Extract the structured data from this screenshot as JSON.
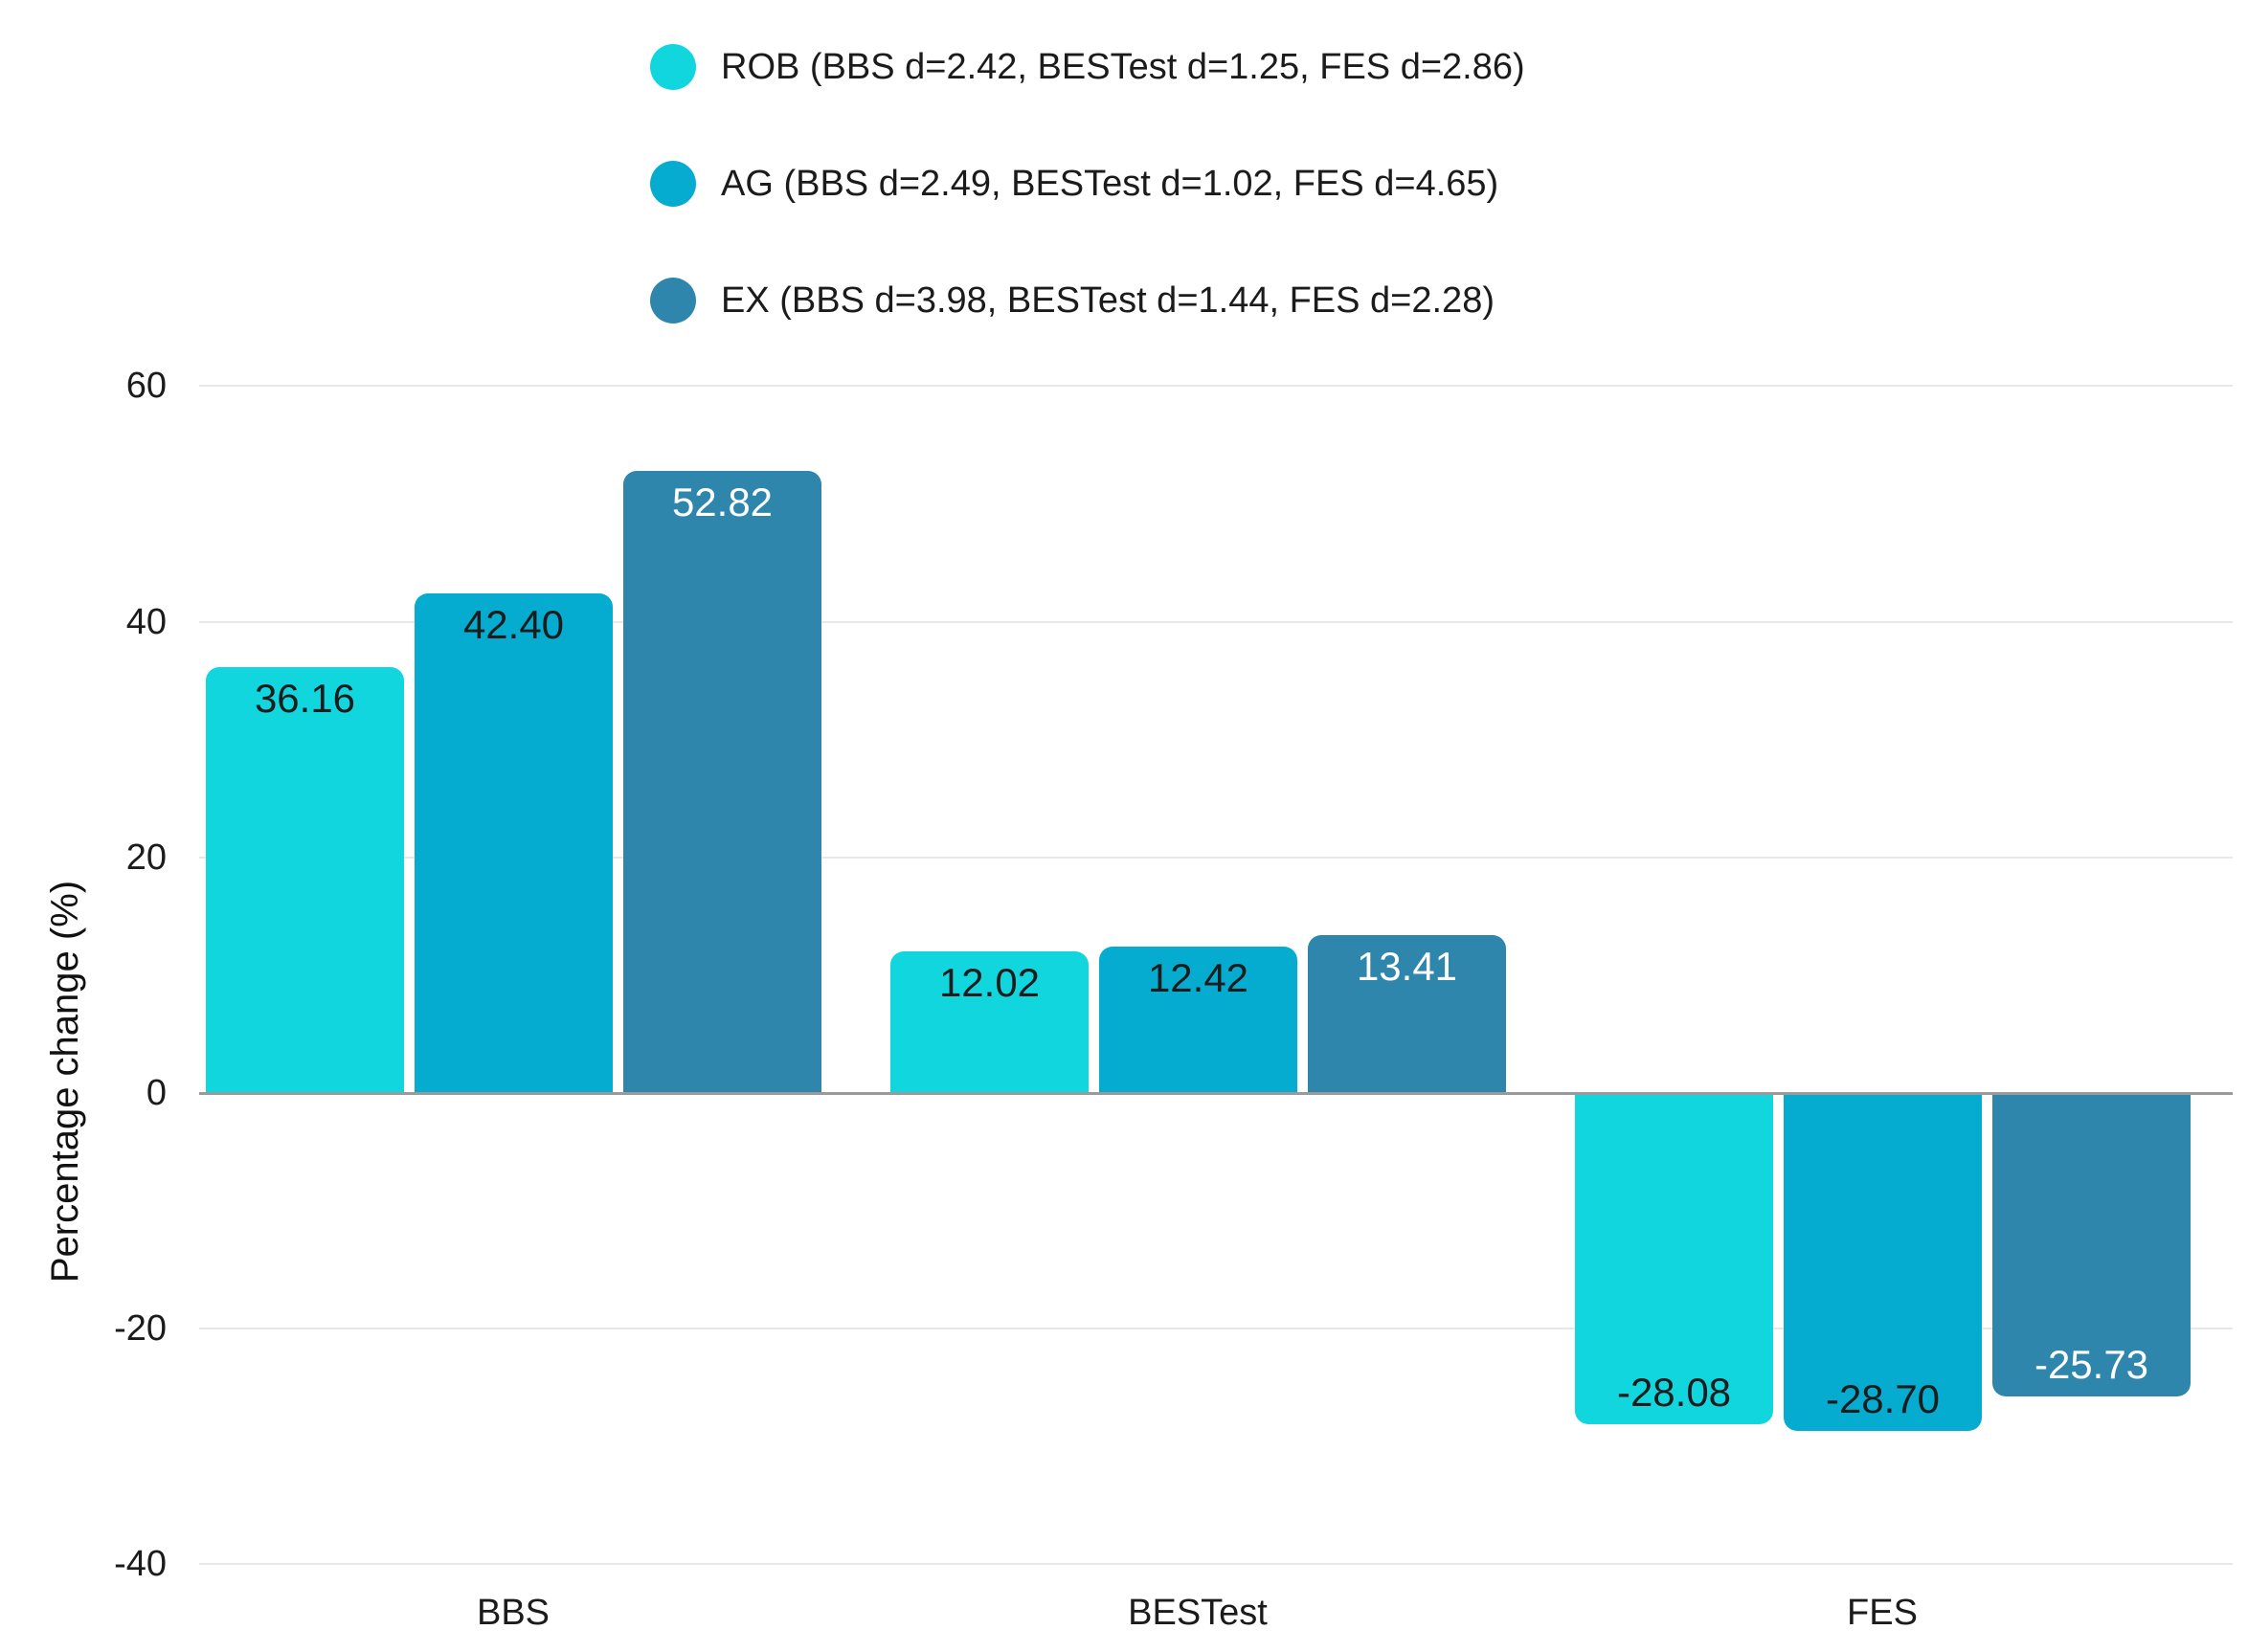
{
  "chart_data": {
    "type": "bar",
    "title": "",
    "categories": [
      "BBS",
      "BESTest",
      "FES"
    ],
    "series": [
      {
        "name": "ROB",
        "legend_label": "ROB (BBS d=2.42, BESTest d=1.25, FES d=2.86)",
        "color": "#12D6DE",
        "label_color": "#1c1c1c",
        "values": [
          36.16,
          12.02,
          -28.08
        ]
      },
      {
        "name": "AG",
        "legend_label": "AG (BBS d=2.49, BESTest d=1.02, FES d=4.65)",
        "color": "#06ACCF",
        "label_color": "#1c1c1c",
        "values": [
          42.4,
          12.42,
          -28.7
        ]
      },
      {
        "name": "EX",
        "legend_label": "EX (BBS d=3.98, BESTest d=1.44, FES d=2.28)",
        "color": "#2E86AD",
        "label_color": "#ffffff",
        "values": [
          52.82,
          13.41,
          -25.73
        ]
      }
    ],
    "value_labels": [
      [
        "36.16",
        "12.02",
        "-28.08"
      ],
      [
        "42.40",
        "12.42",
        "-28.70"
      ],
      [
        "52.82",
        "13.41",
        "-25.73"
      ]
    ],
    "xlabel": "",
    "ylabel": "Percentage change (%)",
    "ylim": [
      -40,
      60
    ],
    "yticks": [
      60,
      40,
      20,
      0,
      -20,
      -40
    ],
    "grid": "horizontal",
    "legend_position": "top-center",
    "colors": {
      "gridline": "#e8e8e8",
      "zero_line": "#9a9a9a",
      "text": "#1b1b1b",
      "background": "#ffffff"
    }
  }
}
